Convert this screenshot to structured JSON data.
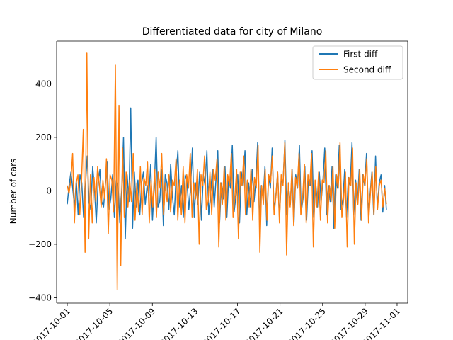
{
  "chart_data": {
    "type": "line",
    "title": "Differentiated data for city of Milano",
    "xlabel": "",
    "ylabel": "Number of cars",
    "x_start": "2017-10-01",
    "x_end": "2017-10-31",
    "xlim": [
      "2017-09-30",
      "2017-11-02"
    ],
    "ylim": [
      -420,
      560
    ],
    "x_ticks": [
      "2017-10-01",
      "2017-10-05",
      "2017-10-09",
      "2017-10-13",
      "2017-10-17",
      "2017-10-21",
      "2017-10-25",
      "2017-10-29",
      "2017-11-01"
    ],
    "y_ticks": [
      -400,
      -200,
      0,
      200,
      400
    ],
    "legend_position": "top-right",
    "grid": false,
    "series": [
      {
        "name": "First diff",
        "color": "#1f77b4",
        "values": [
          -50,
          20,
          70,
          10,
          -60,
          40,
          -90,
          60,
          30,
          -100,
          20,
          130,
          -40,
          -70,
          90,
          10,
          -120,
          30,
          80,
          -40,
          -60,
          20,
          110,
          -70,
          -30,
          60,
          -100,
          40,
          20,
          -120,
          0,
          200,
          -180,
          60,
          -40,
          310,
          -140,
          70,
          -60,
          40,
          -90,
          30,
          70,
          -50,
          20,
          -20,
          100,
          -110,
          20,
          200,
          -60,
          -40,
          80,
          -130,
          60,
          30,
          -70,
          100,
          -20,
          -90,
          50,
          150,
          -60,
          20,
          -100,
          60,
          40,
          -70,
          10,
          160,
          -100,
          30,
          -50,
          70,
          -110,
          60,
          20,
          150,
          -90,
          -20,
          80,
          -60,
          40,
          150,
          -120,
          30,
          -30,
          90,
          -100,
          50,
          10,
          170,
          -80,
          -20,
          60,
          -120,
          70,
          20,
          150,
          -90,
          30,
          -60,
          80,
          -40,
          40,
          180,
          -110,
          20,
          -30,
          90,
          -130,
          60,
          10,
          160,
          -70,
          -20,
          70,
          -100,
          40,
          30,
          190,
          -90,
          20,
          -50,
          80,
          -120,
          60,
          10,
          170,
          -80,
          -30,
          90,
          -110,
          50,
          20,
          150,
          -100,
          30,
          -60,
          70,
          -40,
          40,
          160,
          -90,
          20,
          -40,
          90,
          -140,
          60,
          10,
          170,
          -70,
          -30,
          80,
          -100,
          50,
          20,
          180,
          -90,
          40,
          -50,
          80,
          -110,
          60,
          20,
          140,
          -80,
          -10,
          70,
          -90,
          130,
          -70,
          30,
          60,
          -80,
          20,
          -70
        ]
      },
      {
        "name": "Second diff",
        "color": "#ff7f0e",
        "values": [
          20,
          -10,
          40,
          140,
          -120,
          30,
          60,
          -90,
          40,
          230,
          -230,
          515,
          -180,
          60,
          -120,
          50,
          -40,
          90,
          20,
          -60,
          40,
          -30,
          120,
          -160,
          60,
          40,
          -80,
          470,
          -370,
          320,
          -280,
          160,
          -100,
          70,
          -60,
          40,
          -40,
          140,
          -110,
          30,
          -80,
          90,
          -90,
          50,
          20,
          110,
          -120,
          40,
          -60,
          80,
          -100,
          70,
          10,
          140,
          -90,
          30,
          -40,
          60,
          -80,
          40,
          20,
          120,
          -110,
          40,
          -90,
          90,
          -120,
          60,
          10,
          140,
          -100,
          30,
          -30,
          80,
          -200,
          60,
          20,
          130,
          -70,
          -40,
          70,
          -90,
          80,
          40,
          120,
          -210,
          30,
          -50,
          90,
          -110,
          60,
          20,
          140,
          -100,
          -20,
          80,
          -180,
          70,
          20,
          130,
          -90,
          40,
          -60,
          80,
          -110,
          50,
          10,
          170,
          -230,
          20,
          -50,
          80,
          -110,
          60,
          30,
          130,
          -90,
          -20,
          70,
          -120,
          60,
          20,
          180,
          -240,
          30,
          -60,
          80,
          -130,
          50,
          10,
          140,
          -90,
          -30,
          100,
          -120,
          60,
          20,
          140,
          -210,
          40,
          -60,
          70,
          -110,
          40,
          30,
          150,
          -120,
          20,
          -40,
          90,
          -140,
          60,
          10,
          180,
          -100,
          -30,
          70,
          -210,
          50,
          20,
          160,
          -200,
          30,
          -50,
          80,
          -110,
          60,
          20,
          120,
          -120,
          -10,
          70,
          -90,
          90,
          -70,
          20,
          40,
          -60,
          10,
          -50
        ]
      }
    ]
  }
}
